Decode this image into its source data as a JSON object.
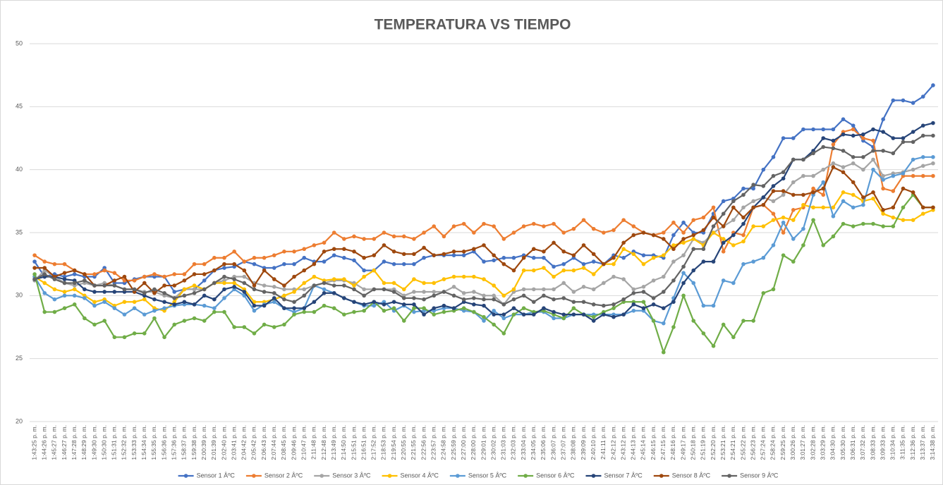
{
  "chart_data": {
    "type": "line",
    "title": "TEMPERATURA VS TIEMPO",
    "categories": [
      "1:43:25 p. m.",
      "1:44:26 p. m.",
      "1:45:27 p. m.",
      "1:46:27 p. m.",
      "1:47:28 p. m.",
      "1:48:29 p. m.",
      "1:49:30 p. m.",
      "1:50:30 p. m.",
      "1:51:31 p. m.",
      "1:52:32 p. m.",
      "1:53:33 p. m.",
      "1:54:34 p. m.",
      "1:55:35 p. m.",
      "1:56:36 p. m.",
      "1:57:36 p. m.",
      "1:58:37 p. m.",
      "1:59:38 p. m.",
      "2:00:39 p. m.",
      "2:01:39 p. m.",
      "2:02:40 p. m.",
      "2:03:41 p. m.",
      "2:04:42 p. m.",
      "2:05:42 p. m.",
      "2:06:43 p. m.",
      "2:07:44 p. m.",
      "2:08:45 p. m.",
      "2:09:46 p. m.",
      "2:10:47 p. m.",
      "2:11:48 p. m.",
      "2:12:48 p. m.",
      "2:13:49 p. m.",
      "2:14:50 p. m.",
      "2:15:51 p. m.",
      "2:16:51 p. m.",
      "2:17:52 p. m.",
      "2:18:53 p. m.",
      "2:19:54 p. m.",
      "2:20:55 p. m.",
      "2:21:55 p. m.",
      "2:22:56 p. m.",
      "2:23:57 p. m.",
      "2:24:58 p. m.",
      "2:25:59 p. m.",
      "2:27:00 p. m.",
      "2:28:00 p. m.",
      "2:29:01 p. m.",
      "2:30:02 p. m.",
      "2:31:03 p. m.",
      "2:32:03 p. m.",
      "2:33:04 p. m.",
      "2:34:05 p. m.",
      "2:35:06 p. m.",
      "2:36:07 p. m.",
      "2:37:07 p. m.",
      "2:38:08 p. m.",
      "2:39:09 p. m.",
      "2:40:10 p. m.",
      "2:41:11 p. m.",
      "2:42:12 p. m.",
      "2:43:12 p. m.",
      "2:44:13 p. m.",
      "2:45:14 p. m.",
      "2:46:15 p. m.",
      "2:47:15 p. m.",
      "2:48:16 p. m.",
      "2:49:17 p. m.",
      "2:50:18 p. m.",
      "2:51:19 p. m.",
      "2:52:20 p. m.",
      "2:53:21 p. m.",
      "2:54:21 p. m.",
      "2:55:22 p. m.",
      "2:56:23 p. m.",
      "2:57:24 p. m.",
      "2:58:24 p. m.",
      "2:59:25 p. m.",
      "3:00:26 p. m.",
      "3:01:27 p. m.",
      "3:02:28 p. m.",
      "3:03:29 p. m.",
      "3:04:30 p. m.",
      "3:05:30 p. m.",
      "3:06:31 p. m.",
      "3:07:32 p. m.",
      "3:08:33 p. m.",
      "3:09:33 p. m.",
      "3:10:34 p. m.",
      "3:11:35 p. m.",
      "3:12:36 p. m.",
      "3:13:37 p. m.",
      "3:14:38 p. m."
    ],
    "series": [
      {
        "name": "Sensor 1 ÂºC",
        "color": "#4472c4",
        "values": [
          32.7,
          31.5,
          31.7,
          31.5,
          31.7,
          31.5,
          31.5,
          32.2,
          31,
          31,
          31.3,
          31.5,
          31.5,
          31.5,
          30.3,
          30.5,
          30.5,
          31.2,
          32,
          32.2,
          32.3,
          32.7,
          32.5,
          32.2,
          32.2,
          32.5,
          32.5,
          33,
          32.7,
          32.7,
          33.2,
          33,
          32.8,
          32,
          32,
          32.7,
          32.5,
          32.5,
          32.5,
          33,
          33.2,
          33.2,
          33.2,
          33.2,
          33.5,
          32.7,
          32.8,
          33,
          33,
          33.2,
          33,
          33,
          32.3,
          32.5,
          33,
          32.5,
          32.7,
          32.5,
          33.2,
          33,
          33.5,
          33.2,
          33.2,
          33,
          34.8,
          35.8,
          35,
          35,
          36.5,
          37.5,
          37.7,
          38.5,
          38.5,
          40,
          41,
          42.5,
          42.5,
          43.2,
          43.2,
          43.2,
          43.2,
          44,
          43.5,
          42.3,
          41.8,
          44,
          45.5,
          45.5,
          45.3,
          45.8,
          46.7
        ]
      },
      {
        "name": "Sensor 2 ÂºC",
        "color": "#ed7d31",
        "values": [
          33.2,
          32.7,
          32.5,
          32.5,
          32,
          31.7,
          31.7,
          32,
          31.8,
          31.2,
          31.2,
          31.5,
          31.7,
          31.5,
          31.7,
          31.7,
          32.5,
          32.5,
          33,
          33,
          33.5,
          32.7,
          33,
          33,
          33.2,
          33.5,
          33.5,
          33.7,
          34,
          34.2,
          35,
          34.5,
          34.7,
          34.5,
          34.5,
          35,
          34.7,
          34.7,
          34.5,
          35,
          35.5,
          34.7,
          35.5,
          35.7,
          35,
          35.7,
          35.5,
          34.5,
          35,
          35.5,
          35.7,
          35.5,
          35.7,
          35,
          35.3,
          36,
          35.3,
          35,
          35.2,
          36,
          35.5,
          35,
          34.8,
          35,
          35.8,
          35,
          36,
          36.2,
          37,
          33.5,
          35,
          34.8,
          37,
          37.2,
          36.5,
          35,
          36.8,
          37,
          38.5,
          38,
          42,
          43,
          43.2,
          42.5,
          42.3,
          38.5,
          38.3,
          39.5,
          39.5,
          39.5,
          39.5
        ]
      },
      {
        "name": "Sensor 3 ÂºC",
        "color": "#a5a5a5",
        "values": [
          31.2,
          32,
          31.5,
          31,
          30.8,
          31,
          30.8,
          31,
          30.8,
          30.5,
          30.5,
          30.3,
          30.3,
          30,
          29.8,
          30.5,
          30.5,
          30.5,
          31,
          31.2,
          31.5,
          31.5,
          31,
          30.8,
          30.7,
          30.5,
          30.5,
          30.5,
          30.8,
          31,
          31.2,
          31.2,
          31,
          30.5,
          30.5,
          30.5,
          30.5,
          30,
          30.3,
          30.3,
          30.3,
          30.3,
          30.7,
          30.2,
          30.3,
          30,
          30,
          29.3,
          30.3,
          30.5,
          30.5,
          30.5,
          30.5,
          31,
          30.3,
          30.7,
          30.5,
          31,
          31.5,
          31.3,
          30.5,
          30.7,
          31.2,
          31.5,
          32.7,
          33.2,
          34.5,
          34.2,
          35,
          35.5,
          36,
          37,
          37.5,
          37.8,
          37.5,
          38,
          39,
          39.5,
          39.5,
          40,
          40.5,
          40.2,
          40.5,
          40,
          40.8,
          39.5,
          39.7,
          39.8,
          40,
          40.3,
          40.5
        ]
      },
      {
        "name": "Sensor 4 ÂºC",
        "color": "#ffc000",
        "values": [
          31.5,
          31,
          30.5,
          30.3,
          30.5,
          30,
          29.5,
          29.7,
          29.2,
          29.5,
          29.5,
          29.7,
          29,
          28.8,
          29.5,
          30.5,
          30.8,
          30.5,
          31,
          31,
          31,
          30.5,
          29.5,
          29.5,
          29.7,
          30,
          30.3,
          31,
          31.5,
          31.2,
          31.3,
          31.3,
          30.8,
          31.5,
          32,
          31,
          31,
          30.5,
          31.3,
          31,
          31,
          31.3,
          31.5,
          31.5,
          31.5,
          31.3,
          30.8,
          30,
          30.5,
          32,
          32,
          32.2,
          31.5,
          32,
          32,
          32.2,
          31.7,
          32.5,
          32.5,
          33.7,
          33.3,
          32.5,
          33,
          33.2,
          34,
          34.2,
          34.5,
          34,
          35,
          34.5,
          34,
          34.3,
          35.5,
          35.5,
          36,
          36.2,
          36,
          37.2,
          37,
          37,
          37,
          38.2,
          38,
          37.5,
          37.7,
          36.5,
          36.2,
          36,
          36,
          36.5,
          36.8
        ]
      },
      {
        "name": "Sensor 5 ÂºC",
        "color": "#5b9bd5",
        "values": [
          31.5,
          30.2,
          29.7,
          30,
          30,
          29.8,
          29.2,
          29.5,
          29,
          28.5,
          29,
          28.5,
          28.8,
          29,
          29.2,
          29.3,
          29.3,
          29.2,
          29,
          29.8,
          30.5,
          30,
          28.8,
          29.3,
          29.5,
          29,
          28.7,
          29,
          30.8,
          30.5,
          30.2,
          29.8,
          29.5,
          29.2,
          29.2,
          29.5,
          28.8,
          29.2,
          28.7,
          28.8,
          28.8,
          29,
          29,
          28.8,
          28.7,
          28,
          28.8,
          28.2,
          28.5,
          28.5,
          28.7,
          28.7,
          28.2,
          28.2,
          28.5,
          28.5,
          28.5,
          28.5,
          28.5,
          28.5,
          28.8,
          28.8,
          28,
          27.8,
          29.8,
          31.8,
          31,
          29.2,
          29.2,
          31.2,
          31,
          32.5,
          32.7,
          33,
          34,
          35.8,
          34.5,
          35.3,
          38,
          39,
          36.3,
          37.5,
          37,
          37.2,
          40,
          39.2,
          39.5,
          39.7,
          40.8,
          41,
          41
        ]
      },
      {
        "name": "Sensor 6 ÂºC",
        "color": "#70ad47",
        "values": [
          31.7,
          28.7,
          28.7,
          29,
          29.3,
          28.2,
          27.7,
          28,
          26.7,
          26.7,
          27,
          27,
          28.2,
          26.7,
          27.7,
          28,
          28.2,
          28,
          28.7,
          28.7,
          27.5,
          27.5,
          27,
          27.7,
          27.5,
          27.7,
          28.5,
          28.7,
          28.7,
          29.2,
          29,
          28.5,
          28.7,
          28.8,
          29.5,
          28.8,
          29,
          28,
          29,
          29,
          28.5,
          28.7,
          28.8,
          29,
          28.7,
          28.3,
          27.7,
          27,
          28.5,
          29,
          28.7,
          28.8,
          28.5,
          28.2,
          29,
          28.5,
          28.3,
          28.7,
          29,
          29.5,
          29.5,
          29.5,
          28,
          25.5,
          27.5,
          30,
          28,
          27,
          26,
          27.7,
          26.7,
          28,
          28,
          30.2,
          30.5,
          33.2,
          32.7,
          34,
          36,
          34,
          34.7,
          35.7,
          35.5,
          35.7,
          35.7,
          35.5,
          35.5,
          37,
          38,
          37,
          37
        ]
      },
      {
        "name": "Sensor 7 ÂºC",
        "color": "#264478",
        "values": [
          31.3,
          31.5,
          31.5,
          31.3,
          31.2,
          30.5,
          30.3,
          30.3,
          30.3,
          30.3,
          30.3,
          30,
          29.7,
          29.5,
          29.3,
          29.5,
          29.3,
          30,
          29.7,
          30.5,
          30.7,
          30.3,
          29.2,
          29.2,
          29.8,
          29,
          29,
          29,
          29.5,
          30.2,
          30.2,
          29.8,
          29.5,
          29.3,
          29.5,
          29.3,
          29.5,
          29.3,
          29.3,
          28.5,
          29,
          29.2,
          29,
          29.5,
          29.3,
          29.2,
          28.5,
          28.5,
          29,
          28.5,
          28.5,
          29,
          28.7,
          28.5,
          28.5,
          28.5,
          28,
          28.5,
          28.3,
          28.5,
          29.3,
          29,
          29.3,
          29,
          29.5,
          31,
          32,
          32.7,
          32.7,
          34.2,
          34.8,
          35.7,
          37,
          37.8,
          38.7,
          39.3,
          40.8,
          40.8,
          41.5,
          42.5,
          42.3,
          42.8,
          42.7,
          42.8,
          43.2,
          43,
          42.5,
          42.5,
          43,
          43.5,
          43.7
        ]
      },
      {
        "name": "Sensor 8 ÂºC",
        "color": "#9e480e",
        "values": [
          32.2,
          32.2,
          31.5,
          31.8,
          32,
          31.7,
          30.8,
          30.8,
          31.2,
          31.5,
          30.3,
          31,
          30.2,
          30.8,
          30.8,
          31.2,
          31.7,
          31.7,
          32,
          32.5,
          32.5,
          32,
          30.8,
          32,
          31.3,
          30.8,
          31.5,
          32,
          32.5,
          33.5,
          33.7,
          33.7,
          33.5,
          33,
          33.2,
          34,
          33.5,
          33.3,
          33.3,
          33.8,
          33.2,
          33.3,
          33.5,
          33.5,
          33.7,
          34,
          33.2,
          32.5,
          32,
          33,
          33.7,
          33.5,
          34.2,
          33.5,
          33.2,
          34,
          33.3,
          32.5,
          33,
          34.2,
          34.8,
          35,
          34.8,
          34.5,
          33.7,
          34.5,
          34.8,
          35.2,
          36.2,
          35.5,
          37,
          36.2,
          37,
          37.2,
          38.3,
          38.3,
          38,
          38,
          38.2,
          38.5,
          40.2,
          39.8,
          39,
          37.8,
          38.2,
          36.8,
          37,
          38.5,
          38.2,
          37,
          37
        ]
      },
      {
        "name": "Sensor 9 ÂºC",
        "color": "#636363",
        "values": [
          31.3,
          31.7,
          31.3,
          31,
          31,
          31.2,
          30.8,
          30.8,
          30.8,
          30.5,
          30.5,
          30.2,
          30.5,
          30.2,
          29.8,
          30,
          30.2,
          30.5,
          31,
          31.5,
          31.3,
          31,
          30.5,
          30.3,
          30.2,
          29.7,
          29.5,
          30,
          30.8,
          31,
          30.8,
          30.8,
          30.5,
          30,
          30.5,
          30.5,
          30.3,
          29.8,
          29.8,
          29.7,
          30,
          30.3,
          30,
          29.7,
          29.8,
          29.7,
          29.7,
          29.3,
          29.7,
          30,
          29.5,
          30,
          29.7,
          29.8,
          29.5,
          29.5,
          29.3,
          29.2,
          29.3,
          29.7,
          30.2,
          30.3,
          29.8,
          30.3,
          31.2,
          32.3,
          33.7,
          33.7,
          35.5,
          36.5,
          37.5,
          38,
          38.8,
          38.7,
          39.5,
          39.8,
          40.8,
          40.8,
          41.3,
          41.8,
          41.7,
          41.5,
          41,
          41,
          41.5,
          41.5,
          41.3,
          42.2,
          42.2,
          42.7,
          42.7
        ]
      }
    ],
    "ylim": [
      20,
      50
    ],
    "yticks": [
      20,
      25,
      30,
      35,
      40,
      45,
      50
    ],
    "grid": true,
    "legend": "bottom"
  }
}
